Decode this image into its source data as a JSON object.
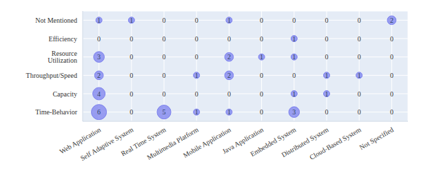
{
  "chart_data": {
    "type": "bubble",
    "x_categories": [
      "Web Application",
      "Self Adaptive System",
      "Real Time System",
      "Multimedia Platform",
      "Mobile Application",
      "Java Application",
      "Embedded System",
      "Distributed System",
      "Cloud-Based System",
      "Not Specified"
    ],
    "y_categories": [
      "Time-Behavior",
      "Capacity",
      "Throughput/Speed",
      "Resource Utilization",
      "Efficiency",
      "Not Mentioned"
    ],
    "values": [
      [
        6,
        0,
        5,
        1,
        1,
        0,
        3,
        0,
        0,
        0
      ],
      [
        4,
        0,
        0,
        0,
        0,
        0,
        1,
        1,
        0,
        0
      ],
      [
        2,
        0,
        0,
        1,
        2,
        0,
        0,
        1,
        1,
        0
      ],
      [
        3,
        0,
        0,
        0,
        2,
        1,
        1,
        0,
        0,
        0
      ],
      [
        0,
        0,
        0,
        0,
        0,
        0,
        1,
        0,
        0,
        0
      ],
      [
        1,
        1,
        0,
        0,
        1,
        0,
        0,
        0,
        0,
        2
      ]
    ],
    "color": "#7b80ee",
    "grid": true,
    "data_labels": true
  }
}
